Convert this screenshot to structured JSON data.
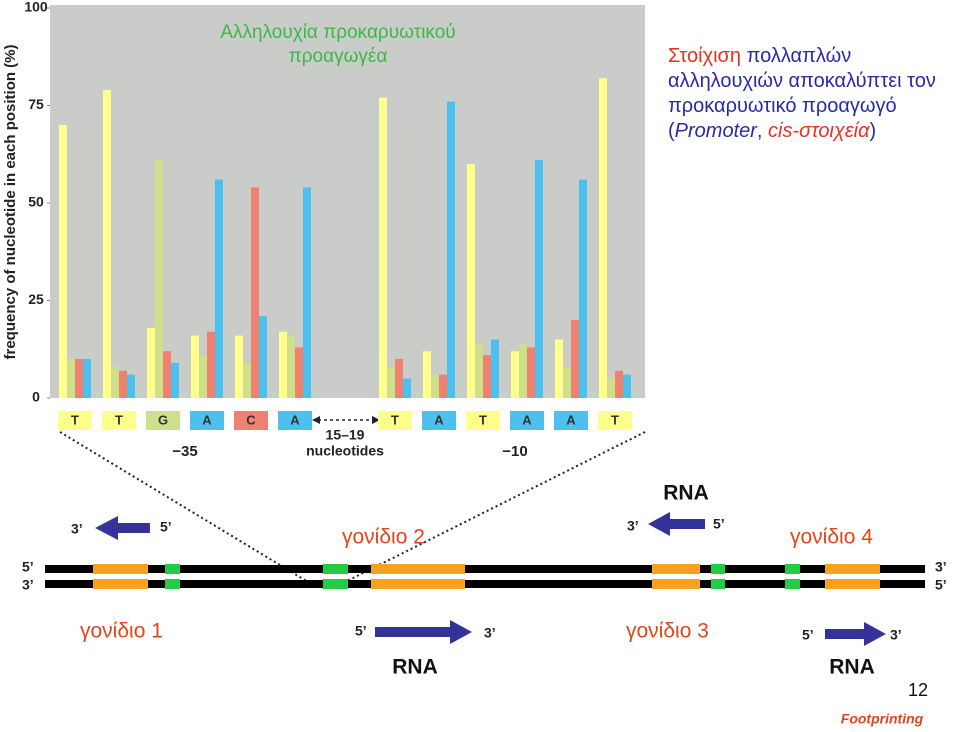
{
  "chart_data": {
    "type": "bar",
    "title_lines": [
      "Αλληλουχία προκαρυωτικού",
      "προαγωγέα"
    ],
    "ylabel": "frequency of nucleotide in each position (%)",
    "categories": [
      "T",
      "T",
      "G",
      "A",
      "C",
      "A",
      "T",
      "A",
      "T",
      "A",
      "A",
      "T"
    ],
    "category_colors": [
      "#ffff8c",
      "#ffff8c",
      "#cfe08c",
      "#4cc0ee",
      "#f08070",
      "#4cc0ee",
      "#ffff8c",
      "#4cc0ee",
      "#ffff8c",
      "#4cc0ee",
      "#4cc0ee",
      "#ffff8c"
    ],
    "series": [
      {
        "color": "#ffff8c",
        "values": [
          70,
          79,
          18,
          16,
          16,
          17,
          77,
          12,
          60,
          12,
          15,
          82
        ]
      },
      {
        "color": "#cfe08c",
        "values": [
          10,
          8,
          61,
          11,
          9,
          16,
          8,
          6,
          14,
          14,
          8,
          5
        ]
      },
      {
        "color": "#f08070",
        "values": [
          10,
          7,
          12,
          17,
          54,
          13,
          10,
          6,
          11,
          13,
          20,
          7
        ]
      },
      {
        "color": "#4cc0ee",
        "values": [
          10,
          6,
          9,
          56,
          21,
          54,
          5,
          76,
          15,
          61,
          56,
          6
        ]
      }
    ],
    "ylim": [
      0,
      100
    ],
    "yticks": [
      0,
      25,
      50,
      75,
      100
    ],
    "annotations": [
      "−35",
      "15–19",
      "nucleotides",
      "−10"
    ]
  },
  "caption": {
    "parts": [
      {
        "text": "Στοίχιση ",
        "color": "#e8321e",
        "italic": false
      },
      {
        "text": "πολλαπλών αλληλουχιών αποκαλύπτει τον προκαρυωτικό προαγωγό (",
        "color": "#2a2aa8",
        "italic": false
      },
      {
        "text": "Promoter",
        "color": "#2a2aa8",
        "italic": true
      },
      {
        "text": ", ",
        "color": "#2a2aa8",
        "italic": false
      },
      {
        "text": "cis-στοιχεία",
        "color": "#e8321e",
        "italic": true
      },
      {
        "text": ")",
        "color": "#2a2aa8",
        "italic": false
      }
    ]
  },
  "diagram": {
    "left_ends": [
      "5’",
      "3’"
    ],
    "right_ends": [
      "3’",
      "5’"
    ],
    "genes": [
      "γονίδιο 1",
      "γονίδιο 2",
      "γονίδιο 3",
      "γονίδιο 4"
    ],
    "transcripts": [
      {
        "ends": [
          "3’",
          "5’"
        ]
      },
      {
        "label": "RNA",
        "ends": [
          "3’",
          "5’"
        ]
      },
      {
        "label": "RNA",
        "ends": [
          "5’",
          "3’"
        ]
      },
      {
        "label": "RNA",
        "ends": [
          "5’",
          "3’"
        ]
      }
    ]
  },
  "footer": {
    "page": "12",
    "note": "Footprinting"
  }
}
